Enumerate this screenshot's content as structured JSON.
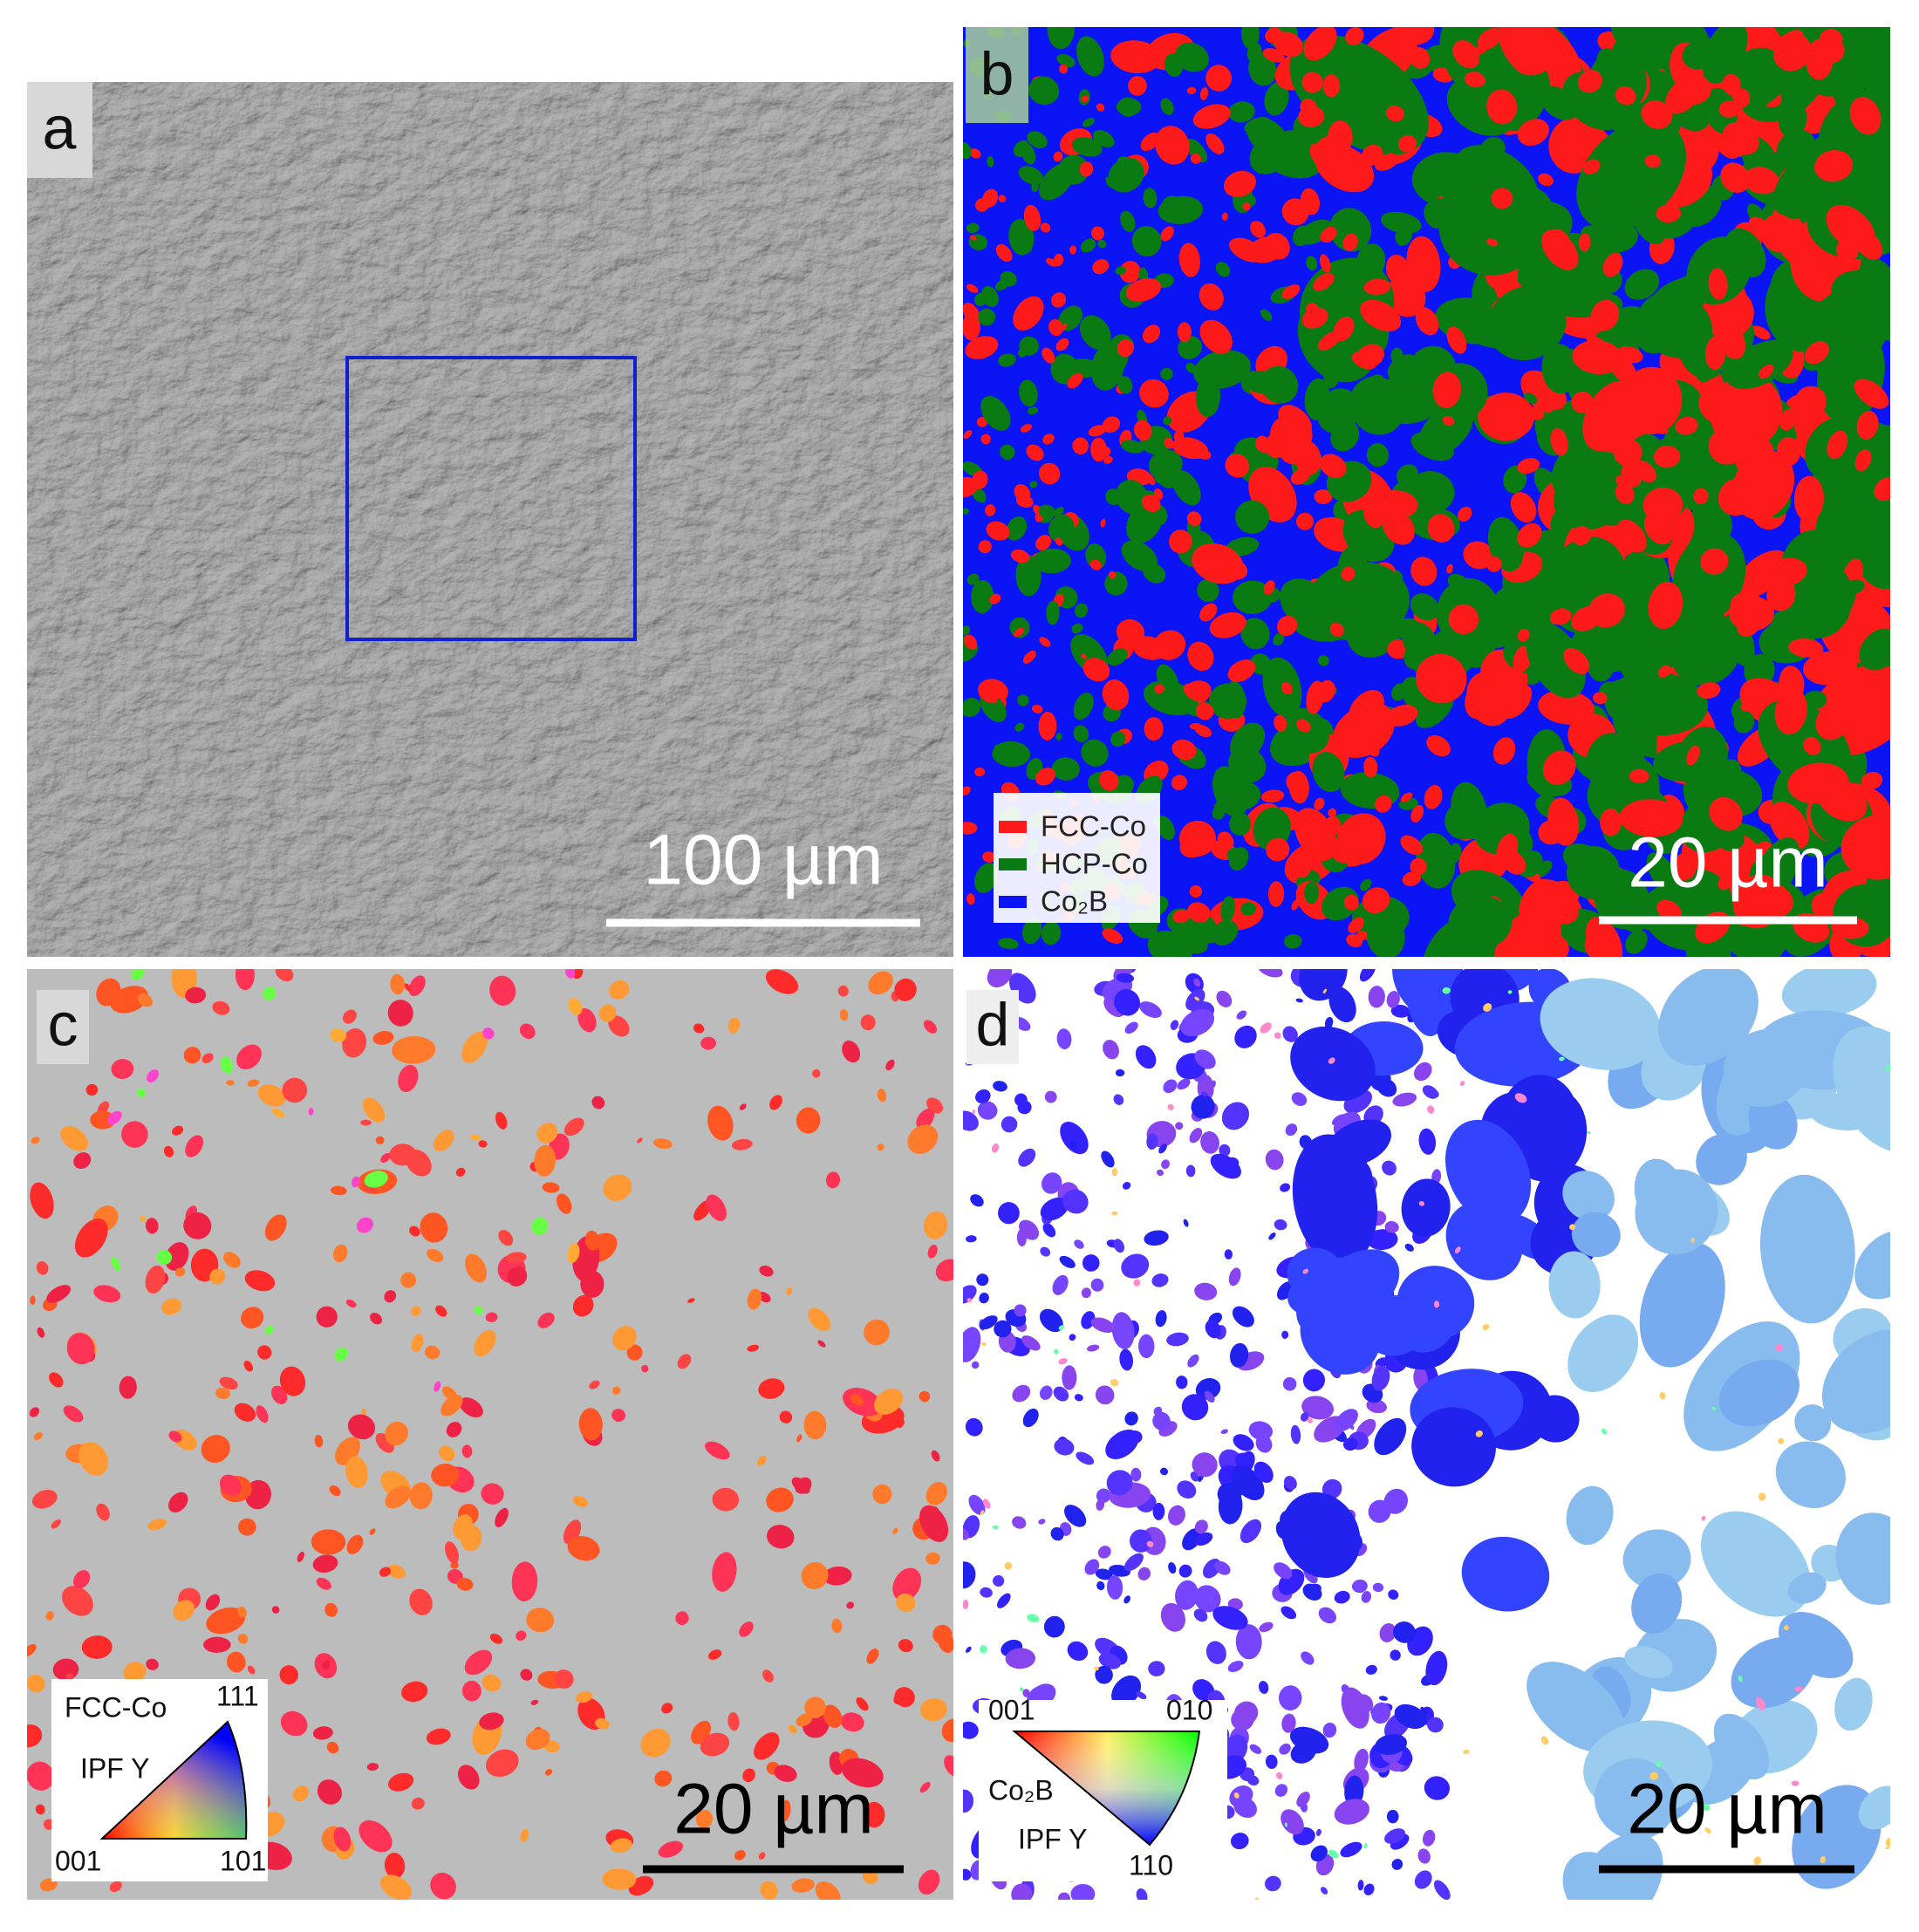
{
  "panels": [
    {
      "label": "a",
      "scale_bar": "100 µm"
    },
    {
      "label": "b",
      "scale_bar": "20 µm",
      "legend": [
        {
          "name": "FCC-Co",
          "color": "#ff1a1a"
        },
        {
          "name": "HCP-Co",
          "color": "#0a7a12"
        },
        {
          "name": "Co₂B",
          "color": "#0a14f5"
        }
      ]
    },
    {
      "label": "c",
      "scale_bar": "20 µm",
      "ipf_key": {
        "phase": "FCC-Co",
        "direction": "IPF Y",
        "corner_top": "111",
        "corner_left": "001",
        "corner_right": "101"
      }
    },
    {
      "label": "d",
      "scale_bar": "20 µm",
      "ipf_key": {
        "phase": "Co₂B",
        "direction": "IPF Y",
        "corner_left": "001",
        "corner_right": "010",
        "corner_bottom": "110"
      }
    }
  ]
}
